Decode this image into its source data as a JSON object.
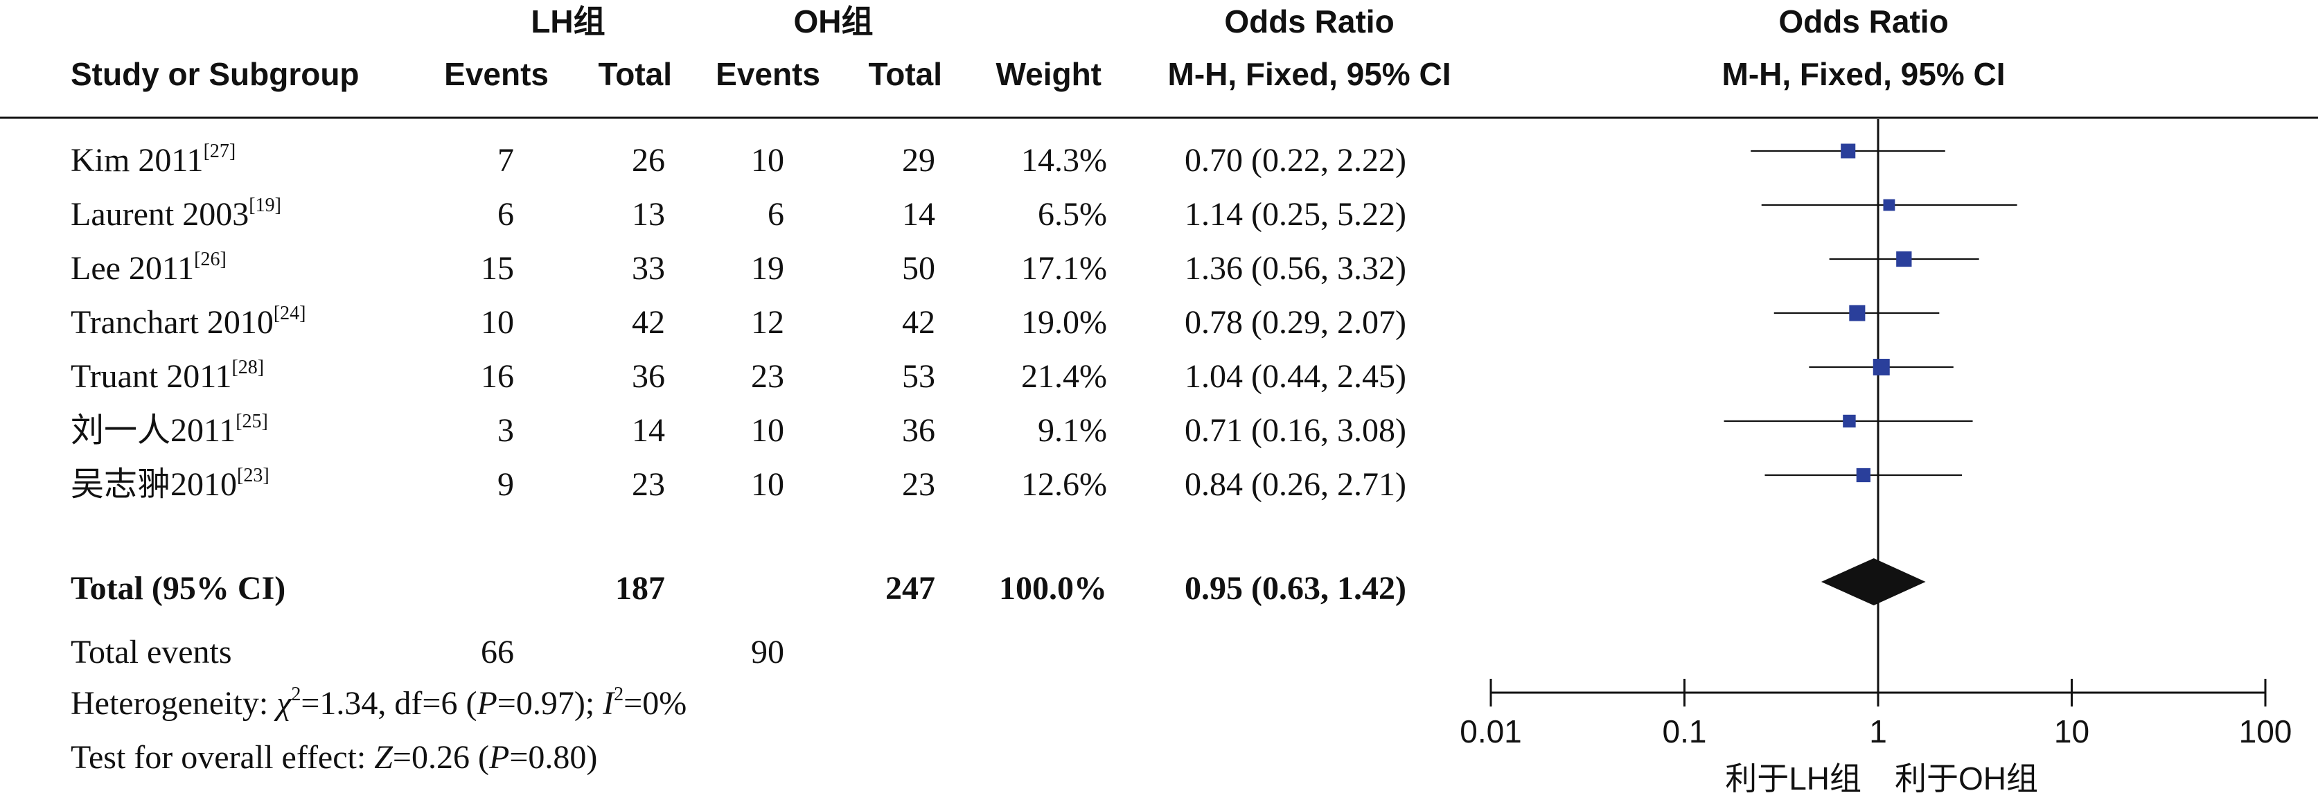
{
  "header": {
    "group1": "LH组",
    "group2": "OH组",
    "or_title": "Odds Ratio",
    "study_col": "Study or Subgroup",
    "events": "Events",
    "total": "Total",
    "weight": "Weight",
    "method": "M-H, Fixed, 95% CI",
    "plot_title": "Odds Ratio",
    "plot_method": "M-H, Fixed, 95% CI"
  },
  "studies": [
    {
      "name": "Kim 2011",
      "ref": "[27]",
      "e1": "7",
      "t1": "26",
      "e2": "10",
      "t2": "29",
      "weight": "14.3%",
      "ci_text": "0.70 (0.22, 2.22)"
    },
    {
      "name": "Laurent 2003",
      "ref": "[19]",
      "e1": "6",
      "t1": "13",
      "e2": "6",
      "t2": "14",
      "weight": "6.5%",
      "ci_text": "1.14 (0.25, 5.22)"
    },
    {
      "name": "Lee 2011",
      "ref": "[26]",
      "e1": "15",
      "t1": "33",
      "e2": "19",
      "t2": "50",
      "weight": "17.1%",
      "ci_text": "1.36 (0.56, 3.32)"
    },
    {
      "name": "Tranchart 2010",
      "ref": "[24]",
      "e1": "10",
      "t1": "42",
      "e2": "12",
      "t2": "42",
      "weight": "19.0%",
      "ci_text": "0.78 (0.29, 2.07)"
    },
    {
      "name": "Truant 2011",
      "ref": "[28]",
      "e1": "16",
      "t1": "36",
      "e2": "23",
      "t2": "53",
      "weight": "21.4%",
      "ci_text": "1.04 (0.44, 2.45)"
    },
    {
      "name": "刘一人2011",
      "ref": "[25]",
      "e1": "3",
      "t1": "14",
      "e2": "10",
      "t2": "36",
      "weight": "9.1%",
      "ci_text": "0.71 (0.16, 3.08)"
    },
    {
      "name": "吴志翀2010",
      "ref": "[23]",
      "e1": "9",
      "t1": "23",
      "e2": "10",
      "t2": "23",
      "weight": "12.6%",
      "ci_text": "0.84 (0.26, 2.71)"
    }
  ],
  "total_row": {
    "label": "Total (95% CI)",
    "t1": "187",
    "t2": "247",
    "weight": "100.0%",
    "ci_text": "0.95 (0.63, 1.42)"
  },
  "events_row": {
    "label": "Total events",
    "e1": "66",
    "e2": "90"
  },
  "heterogeneity": {
    "prefix": "Heterogeneity: ",
    "chi_sym": "χ",
    "chi_rest": "=1.34, df=6 (",
    "p_sym": "P",
    "p_rest": "=0.97); ",
    "i_sym": "I",
    "i_rest": "=0%"
  },
  "overall": {
    "prefix": "Test for overall effect: ",
    "z_sym": "Z",
    "z_rest": "=0.26 (",
    "p_sym": "P",
    "p_rest": "=0.80)"
  },
  "favours": {
    "left": "利于LH组",
    "right": "利于OH组"
  },
  "chart_data": {
    "type": "forest",
    "scale": "log",
    "xlim": [
      0.01,
      100
    ],
    "ticks": [
      0.01,
      0.1,
      1,
      10,
      100
    ],
    "tick_labels": [
      "0.01",
      "0.1",
      "1",
      "10",
      "100"
    ],
    "null_value": 1,
    "point_color": "#2a3f9b",
    "diamond_color": "#111111",
    "studies": [
      {
        "or": 0.7,
        "lo": 0.22,
        "hi": 2.22,
        "weight": 14.3
      },
      {
        "or": 1.14,
        "lo": 0.25,
        "hi": 5.22,
        "weight": 6.5
      },
      {
        "or": 1.36,
        "lo": 0.56,
        "hi": 3.32,
        "weight": 17.1
      },
      {
        "or": 0.78,
        "lo": 0.29,
        "hi": 2.07,
        "weight": 19.0
      },
      {
        "or": 1.04,
        "lo": 0.44,
        "hi": 2.45,
        "weight": 21.4
      },
      {
        "or": 0.71,
        "lo": 0.16,
        "hi": 3.08,
        "weight": 9.1
      },
      {
        "or": 0.84,
        "lo": 0.26,
        "hi": 2.71,
        "weight": 12.6
      }
    ],
    "total": {
      "or": 0.95,
      "lo": 0.63,
      "hi": 1.42
    }
  }
}
